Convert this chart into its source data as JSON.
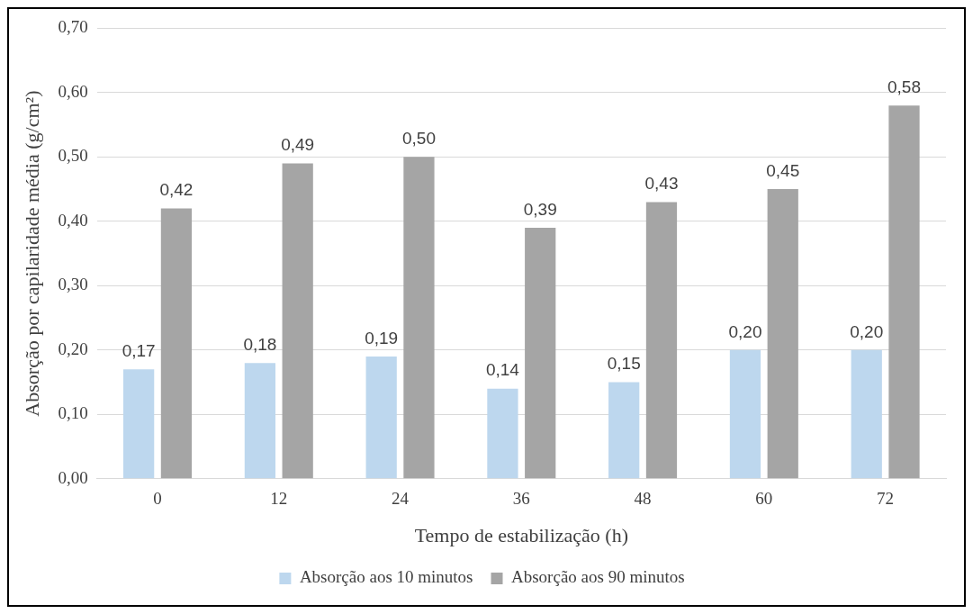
{
  "chart_data": {
    "type": "bar",
    "xlabel": "Tempo de estabilização (h)",
    "ylabel": "Absorção por capilaridade média (g/cm²)",
    "categories": [
      "0",
      "12",
      "24",
      "36",
      "48",
      "60",
      "72"
    ],
    "series": [
      {
        "name": "Absorção aos 10 minutos",
        "color": "#bdd7ee",
        "values": [
          0.17,
          0.18,
          0.19,
          0.14,
          0.15,
          0.2,
          0.2
        ],
        "value_labels": [
          "0,17",
          "0,18",
          "0,19",
          "0,14",
          "0,15",
          "0,20",
          "0,20"
        ]
      },
      {
        "name": "Absorção aos 90 minutos",
        "color": "#a5a5a5",
        "values": [
          0.42,
          0.49,
          0.5,
          0.39,
          0.43,
          0.45,
          0.58
        ],
        "value_labels": [
          "0,42",
          "0,49",
          "0,50",
          "0,39",
          "0,43",
          "0,45",
          "0,58"
        ]
      }
    ],
    "ylim": [
      0,
      0.7
    ],
    "yticks": [
      {
        "value": 0,
        "label": "0,00"
      },
      {
        "value": 0.1,
        "label": "0,10"
      },
      {
        "value": 0.2,
        "label": "0,20"
      },
      {
        "value": 0.3,
        "label": "0,30"
      },
      {
        "value": 0.4,
        "label": "0,40"
      },
      {
        "value": 0.5,
        "label": "0,50"
      },
      {
        "value": 0.6,
        "label": "0,60"
      },
      {
        "value": 0.7,
        "label": "0,70"
      }
    ],
    "grid": "y",
    "legend": "bottom"
  }
}
